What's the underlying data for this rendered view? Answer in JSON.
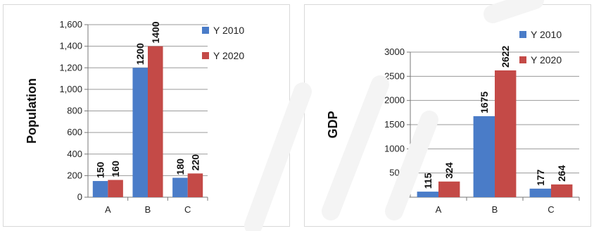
{
  "chart_data": [
    {
      "type": "bar",
      "title": "",
      "xlabel": "",
      "ylabel": "Population",
      "categories": [
        "A",
        "B",
        "C"
      ],
      "series": [
        {
          "name": "Y 2010",
          "values": [
            150,
            1200,
            180
          ],
          "color": "#4a7cc8",
          "data_labels": [
            "150",
            "1200",
            "180"
          ]
        },
        {
          "name": "Y 2020",
          "values": [
            160,
            1400,
            220
          ],
          "color": "#c44a47",
          "data_labels": [
            "160",
            "1400",
            "220"
          ]
        }
      ],
      "ylim": [
        0,
        1600
      ],
      "yticks": [
        0,
        200,
        400,
        600,
        800,
        1000,
        1200,
        1400,
        1600
      ],
      "ytick_labels": [
        "0",
        "200",
        "400",
        "600",
        "800",
        "1,000",
        "1,200",
        "1,400",
        "1,600"
      ],
      "grid": true,
      "legend_position": "top-right"
    },
    {
      "type": "bar",
      "title": "",
      "xlabel": "",
      "ylabel": "GDP",
      "categories": [
        "A",
        "B",
        "C"
      ],
      "series": [
        {
          "name": "Y 2010",
          "values": [
            115,
            1675,
            177
          ],
          "color": "#4a7cc8",
          "data_labels": [
            "115",
            "1675",
            "177"
          ]
        },
        {
          "name": "Y 2020",
          "values": [
            324,
            2622,
            264
          ],
          "color": "#c44a47",
          "data_labels": [
            "324",
            "2622",
            "264"
          ]
        }
      ],
      "ylim": [
        0,
        3000
      ],
      "yticks": [
        0,
        500,
        1000,
        1500,
        2000,
        2500,
        3000
      ],
      "ytick_labels": [
        "0",
        "500",
        "1000",
        "1500",
        "2000",
        "2500",
        "3000"
      ],
      "grid": true,
      "legend_position": "top-right"
    }
  ]
}
